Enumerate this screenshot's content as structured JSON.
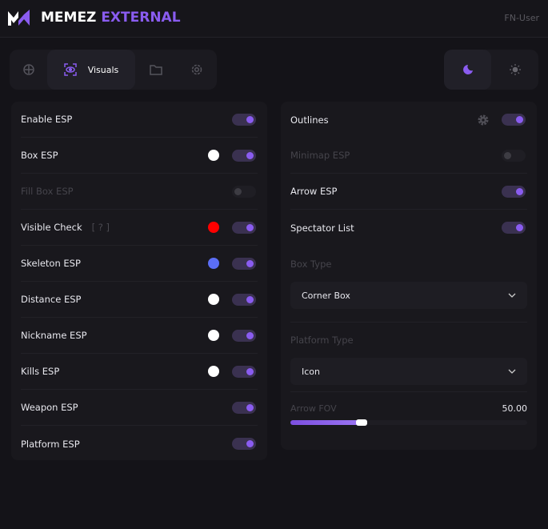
{
  "header": {
    "brand_white": "MEMEZ",
    "brand_accent": "EXTERNAL",
    "user": "FN-User",
    "accent": "#8a5cf0"
  },
  "tabs": [
    {
      "icon": "crosshair-icon"
    },
    {
      "icon": "eye-scan-icon",
      "label": "Visuals",
      "active": true
    },
    {
      "icon": "folder-icon"
    },
    {
      "icon": "gear-icon"
    }
  ],
  "theme": {
    "options": [
      "moon-icon",
      "sun-icon"
    ],
    "active": "moon-icon"
  },
  "left": [
    {
      "label": "Enable ESP",
      "on": true
    },
    {
      "label": "Box ESP",
      "on": true,
      "color": "#ffffff"
    },
    {
      "label": "Fill Box ESP",
      "on": false,
      "disabled": true
    },
    {
      "label": "Visible Check",
      "hint": "[ ? ]",
      "on": true,
      "color": "#ff0000"
    },
    {
      "label": "Skeleton ESP",
      "on": true,
      "color": "#5b6ef5"
    },
    {
      "label": "Distance ESP",
      "on": true,
      "color": "#ffffff"
    },
    {
      "label": "Nickname ESP",
      "on": true,
      "color": "#ffffff"
    },
    {
      "label": "Kills ESP",
      "on": true,
      "color": "#ffffff"
    },
    {
      "label": "Weapon ESP",
      "on": true
    },
    {
      "label": "Platform ESP",
      "on": true
    }
  ],
  "right": {
    "outlines": {
      "label": "Outlines",
      "on": true
    },
    "minimap": {
      "label": "Minimap ESP",
      "on": false
    },
    "arrow": {
      "label": "Arrow ESP",
      "on": true
    },
    "spectator": {
      "label": "Spectator List",
      "on": true
    },
    "box_type": {
      "label": "Box Type",
      "value": "Corner Box"
    },
    "platform_type": {
      "label": "Platform Type",
      "value": "Icon"
    },
    "arrow_fov": {
      "label": "Arrow FOV",
      "value": "50.00",
      "fill_fraction": 0.3
    }
  }
}
